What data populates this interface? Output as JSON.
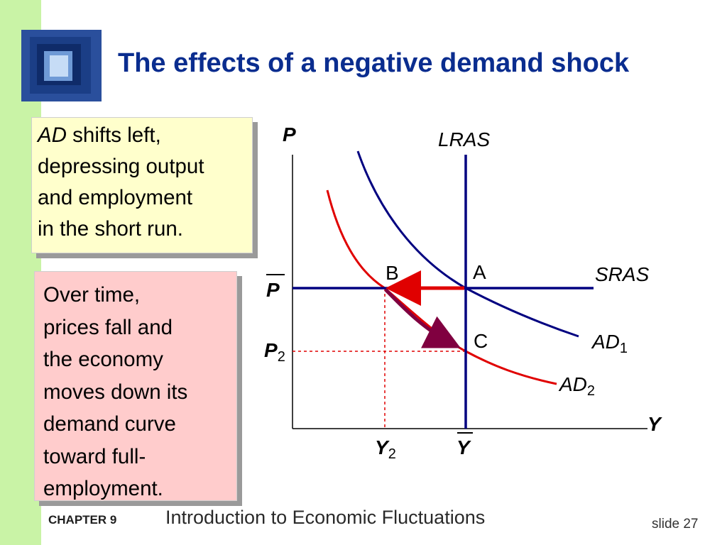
{
  "title": "The effects of a negative demand shock",
  "box1": {
    "emph": "AD",
    "text_rest": " shifts left,",
    "lines": [
      "depressing output",
      "and employment",
      "in the short run."
    ]
  },
  "box2": {
    "lines": [
      "Over time,",
      "prices fall and",
      "the economy",
      "moves down its",
      "demand curve",
      "toward full-",
      "employment."
    ]
  },
  "diagram": {
    "axis_y_label": "P",
    "axis_x_label": "Y",
    "lras_label": "LRAS",
    "sras_label": "SRAS",
    "ad1_label": "AD",
    "ad1_sub": "1",
    "ad2_label": "AD",
    "ad2_sub": "2",
    "point_a": "A",
    "point_b": "B",
    "point_c": "C",
    "p_bar_label": "P",
    "p2_label": "P",
    "p2_sub": "2",
    "y_bar_label": "Y",
    "y2_label": "Y",
    "y2_sub": "2",
    "colors": {
      "navy": "#000080",
      "red": "#e00000",
      "maroon": "#800040"
    }
  },
  "footer": {
    "chapter": "CHAPTER 9",
    "text": "Introduction to Economic Fluctuations",
    "slide": "slide 27"
  }
}
